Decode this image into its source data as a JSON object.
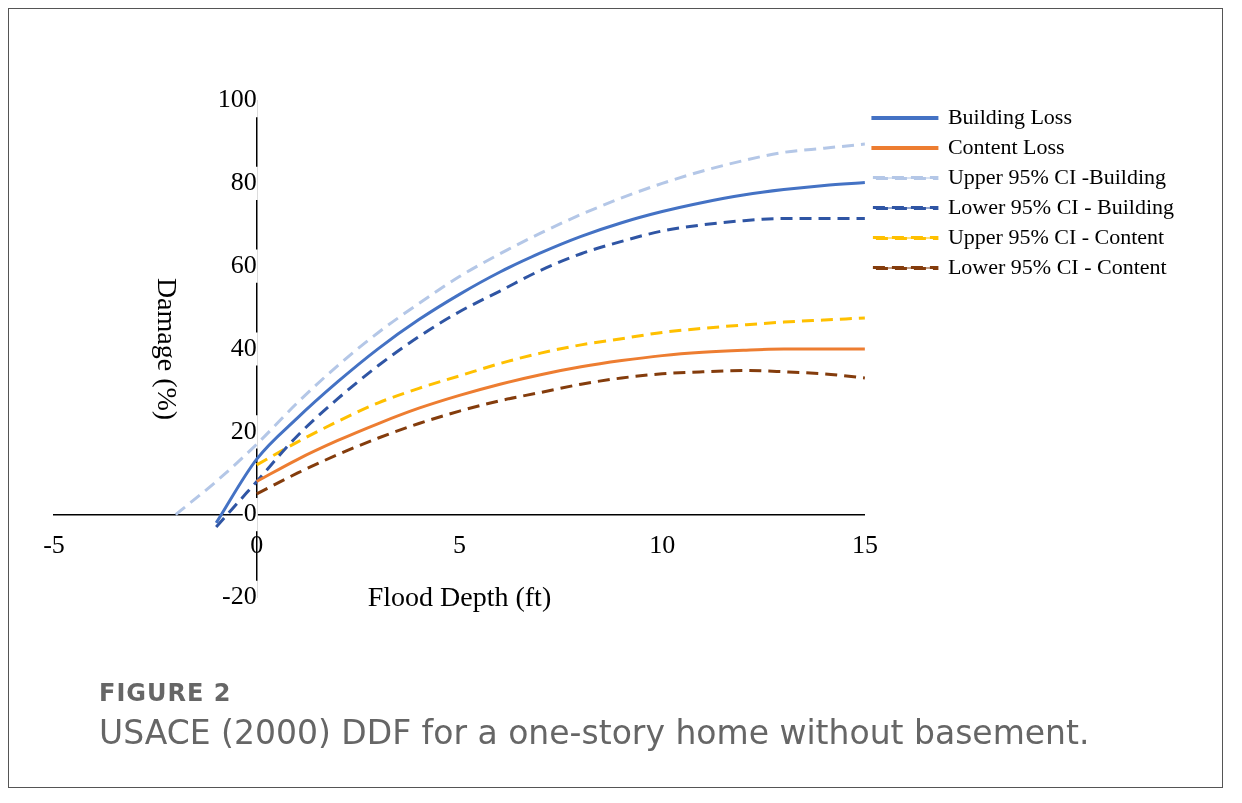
{
  "chart_data": {
    "type": "line",
    "xlabel": "Flood Depth (ft)",
    "ylabel": "Damage (%)",
    "x": [
      -2,
      -1,
      0,
      1,
      2,
      3,
      4,
      5,
      6,
      7,
      8,
      9,
      10,
      11,
      12,
      13,
      14,
      15
    ],
    "xlim": [
      -5,
      15
    ],
    "xticks": [
      -5,
      0,
      5,
      10,
      15
    ],
    "ylim": [
      -20,
      100
    ],
    "yticks": [
      -20,
      0,
      20,
      40,
      60,
      80,
      100
    ],
    "legend": "right",
    "marker": "none",
    "series": [
      {
        "name": "Building Loss",
        "color": "#4472c4",
        "line_style": "solid",
        "values": [
          null,
          -2,
          13.4,
          23.3,
          32.1,
          40.1,
          47.1,
          53.2,
          58.6,
          63.2,
          67.2,
          70.5,
          73.2,
          75.4,
          77.2,
          78.5,
          79.5,
          80.2
        ]
      },
      {
        "name": "Content Loss",
        "color": "#ed7d31",
        "line_style": "solid",
        "values": [
          null,
          null,
          8,
          13.3,
          17.9,
          22,
          25.7,
          28.8,
          31.5,
          33.8,
          35.7,
          37.2,
          38.4,
          39.2,
          39.7,
          40,
          40,
          40
        ]
      },
      {
        "name": "Upper 95% CI -Building",
        "color": "#b4c7e7",
        "line_style": "dashed",
        "values": [
          0,
          8,
          17,
          27,
          36,
          44,
          51,
          57.5,
          63,
          68,
          72.5,
          76.5,
          80,
          83,
          85.5,
          87.5,
          88.5,
          89.5
        ]
      },
      {
        "name": "Lower 95% CI - Building",
        "color": "#2f55a4",
        "line_style": "dashed",
        "values": [
          null,
          -3,
          8,
          19,
          28,
          36,
          43,
          49,
          54,
          59,
          63,
          66,
          68.5,
          70,
          71,
          71.5,
          71.5,
          71.5
        ]
      },
      {
        "name": "Upper 95% CI - Content",
        "color": "#ffc000",
        "line_style": "dashed",
        "values": [
          null,
          null,
          12,
          17.5,
          22.5,
          27,
          30.5,
          33.5,
          36.5,
          39,
          41,
          42.5,
          44,
          45,
          45.8,
          46.5,
          47,
          47.5
        ]
      },
      {
        "name": "Lower 95% CI - Content",
        "color": "#843c0c",
        "line_style": "dashed",
        "values": [
          null,
          null,
          5,
          10,
          14.5,
          18.5,
          22,
          25,
          27.5,
          29.5,
          31.5,
          33,
          34,
          34.5,
          34.8,
          34.5,
          34,
          33
        ]
      }
    ],
    "annotations": [
      "FIGURE 2",
      "USACE (2000) DDF for a one-story home without basement."
    ]
  }
}
